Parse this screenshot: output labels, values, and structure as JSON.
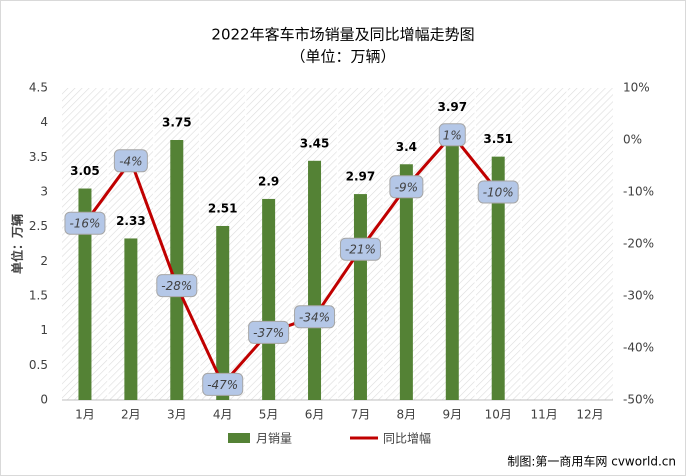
{
  "chart_data": {
    "type": "bar_line",
    "title": "2022年客车市场销量及同比增幅走势图",
    "subtitle": "（单位：万辆）",
    "y_label": "单位：万辆",
    "source": "制图:第一商用车网 cvworld.cn",
    "categories": [
      "1月",
      "2月",
      "3月",
      "4月",
      "5月",
      "6月",
      "7月",
      "8月",
      "9月",
      "10月",
      "11月",
      "12月"
    ],
    "series": [
      {
        "name": "月销量",
        "color": "#548235",
        "values": [
          3.05,
          2.33,
          3.75,
          2.51,
          2.9,
          3.45,
          2.97,
          3.4,
          3.97,
          3.51,
          null,
          null
        ]
      },
      {
        "name": "同比增幅",
        "color": "#c00000",
        "axis": "y2",
        "values": [
          -16,
          -4,
          -28,
          -47,
          -37,
          -34,
          -21,
          -9,
          1,
          -10,
          null,
          null
        ],
        "value_labels": [
          "-16%",
          "-4%",
          "-28%",
          "-47%",
          "-37%",
          "-34%",
          "-21%",
          "-9%",
          "1%",
          "-10%",
          null,
          null
        ]
      }
    ],
    "ylim": [
      0,
      4.5
    ],
    "yticks": [
      0,
      0.5,
      1,
      1.5,
      2,
      2.5,
      3,
      3.5,
      4,
      4.5
    ],
    "y2lim": [
      -50,
      10
    ],
    "y2ticks": [
      {
        "value": 10,
        "label": "10%"
      },
      {
        "value": 0,
        "label": "0%"
      },
      {
        "value": -10,
        "label": "-10%"
      },
      {
        "value": -20,
        "label": "-20%"
      },
      {
        "value": -30,
        "label": "-30%"
      },
      {
        "value": -40,
        "label": "-40%"
      },
      {
        "value": -50,
        "label": "-50%"
      }
    ]
  }
}
